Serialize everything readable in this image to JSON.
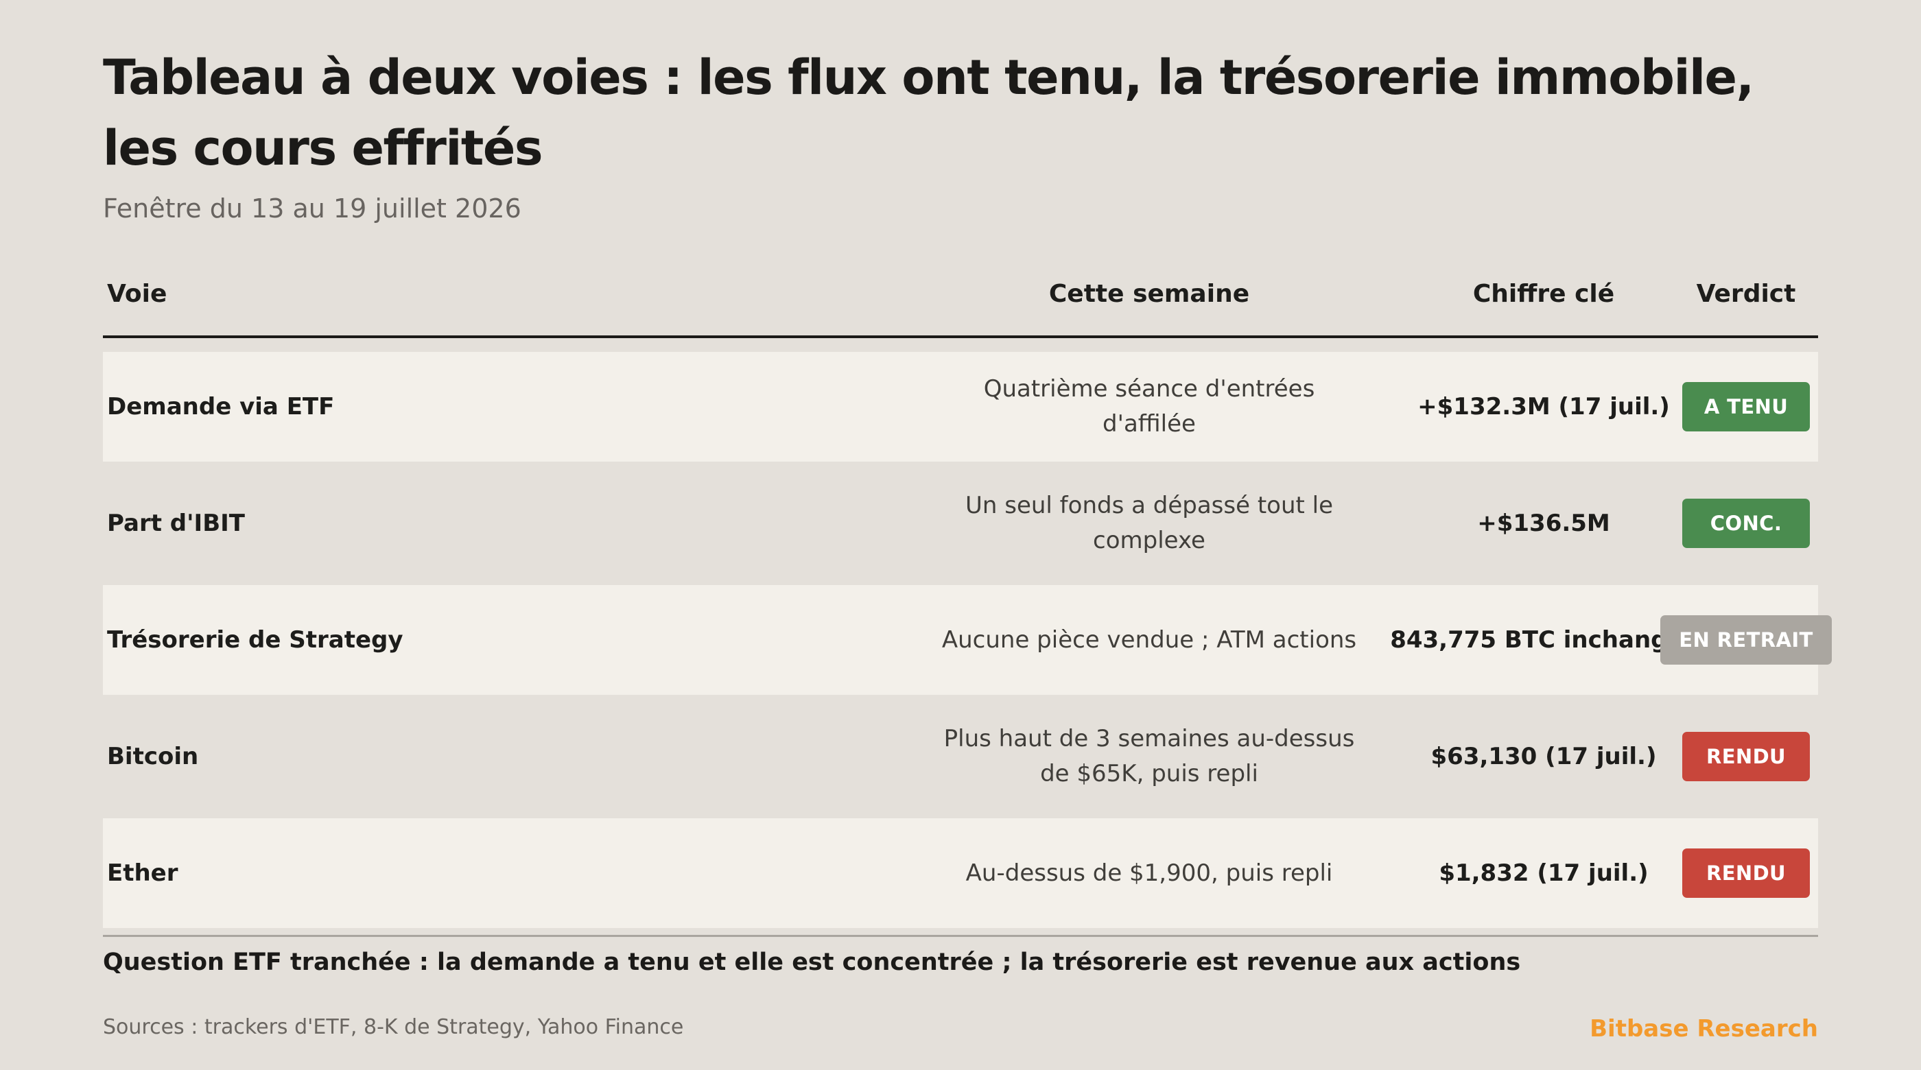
{
  "header": {
    "title": "Tableau à deux voies : les flux ont tenu, la trésorerie immobile, les cours effrités",
    "subtitle": "Fenêtre du 13 au 19 juillet 2026"
  },
  "table": {
    "columns": [
      "Voie",
      "Cette semaine",
      "Chiffre clé",
      "Verdict"
    ],
    "rows": [
      {
        "voie": "Demande via ETF",
        "week": "Quatrième séance d'entrées d'affilée",
        "key": "+$132.3M (17 juil.)",
        "verdict": "A TENU",
        "verdict_color": "#4a8c4f"
      },
      {
        "voie": "Part d'IBIT",
        "week": "Un seul fonds a dépassé tout le complexe",
        "key": "+$136.5M",
        "verdict": "CONC.",
        "verdict_color": "#4a8c4f"
      },
      {
        "voie": "Trésorerie de Strategy",
        "week": "Aucune pièce vendue ; ATM actions",
        "key": "843,775 BTC inchangés",
        "verdict": "EN RETRAIT",
        "verdict_color": "#aaa6a0"
      },
      {
        "voie": "Bitcoin",
        "week": "Plus haut de 3 semaines au-dessus de $65K, puis repli",
        "key": "$63,130 (17 juil.)",
        "verdict": "RENDU",
        "verdict_color": "#c8463b"
      },
      {
        "voie": "Ether",
        "week": "Au-dessus de $1,900, puis repli",
        "key": "$1,832 (17 juil.)",
        "verdict": "RENDU",
        "verdict_color": "#c8463b"
      }
    ]
  },
  "footer": {
    "conclusion": "Question ETF tranchée : la demande a tenu et elle est concentrée ; la trésorerie est revenue aux actions",
    "sources": "Sources : trackers d'ETF, 8-K de Strategy, Yahoo Finance",
    "brand": "Bitbase Research"
  },
  "colors": {
    "background": "#e4e0da",
    "row_highlight": "#f3f0ea",
    "accent_brand": "#f39a2d",
    "status_held": "#4a8c4f",
    "status_neutral": "#aaa6a0",
    "status_given_back": "#c8463b"
  }
}
